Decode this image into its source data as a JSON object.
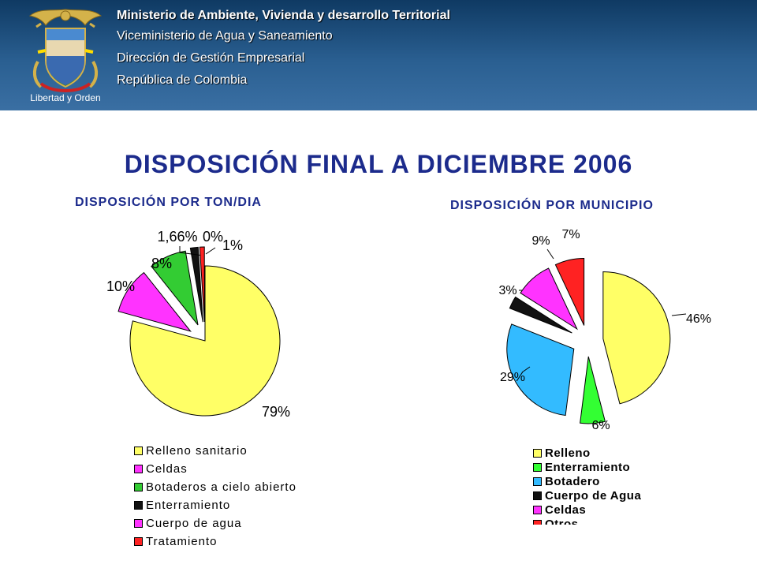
{
  "header": {
    "line1": "Ministerio de Ambiente, Vivienda y desarrollo Territorial",
    "line2": "Viceministerio de Agua y Saneamiento",
    "line3": "Dirección de Gestión Empresarial",
    "line4": "República de Colombia",
    "crest_caption": "Libertad y Orden"
  },
  "title": "DISPOSICIÓN FINAL A DICIEMBRE 2006",
  "colors": {
    "header_bg": "#2a5f91",
    "title": "#1c2b8c",
    "yellow": "#ffff66",
    "magenta": "#ff33ff",
    "green": "#33cc33",
    "black": "#111111",
    "red": "#ff2222",
    "cyan": "#33bbff"
  },
  "chart_data": [
    {
      "type": "pie",
      "title": "DISPOSICIÓN POR TON/DIA",
      "labels": [
        "Relleno sanitario",
        "Celdas",
        "Botaderos a cielo abierto",
        "Enterramiento",
        "Cuerpo de agua",
        "Tratamiento"
      ],
      "values": [
        79,
        10,
        8,
        1.66,
        0,
        1
      ],
      "value_labels": [
        "79%",
        "10%",
        "8%",
        "1,66%",
        "0%",
        "1%"
      ],
      "colors": [
        "#ffff66",
        "#ff33ff",
        "#33cc33",
        "#111111",
        "#ff33ff",
        "#ff2222"
      ],
      "legend_position": "bottom"
    },
    {
      "type": "pie",
      "title": "DISPOSICIÓN POR MUNICIPIO",
      "labels": [
        "Relleno",
        "Enterramiento",
        "Botadero",
        "Cuerpo de Agua",
        "Celdas",
        "Otros"
      ],
      "values": [
        46,
        6,
        29,
        3,
        9,
        7
      ],
      "value_labels": [
        "46%",
        "6%",
        "29%",
        "3%",
        "9%",
        "7%"
      ],
      "colors": [
        "#ffff66",
        "#33ff33",
        "#33bbff",
        "#111111",
        "#ff33ff",
        "#ff2222"
      ],
      "legend_position": "bottom"
    }
  ]
}
